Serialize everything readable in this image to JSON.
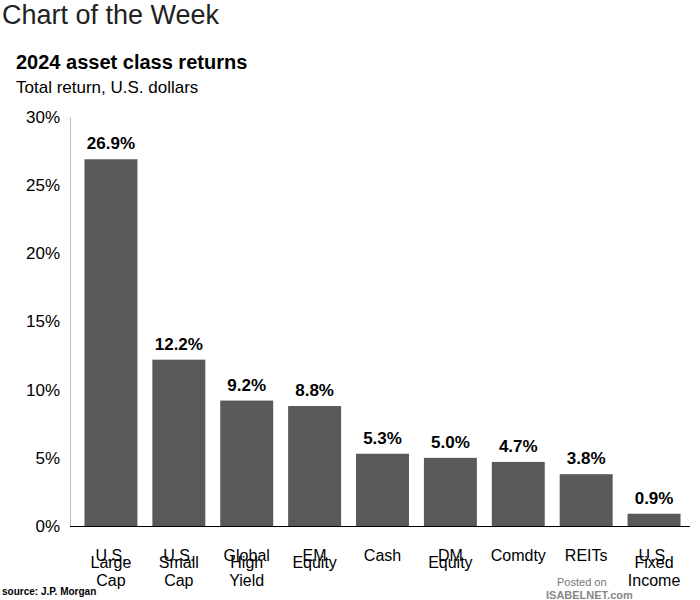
{
  "chart_data": {
    "type": "bar",
    "supertitle": "Chart of the Week",
    "title": "2024 asset class returns",
    "subtitle": "Total return, U.S. dollars",
    "source": "source: J.P. Morgan",
    "annotations": [
      "Posted on",
      "ISABELNET.com"
    ],
    "categories": [
      "U.S. Large Cap",
      "U.S. Small Cap",
      "Global High Yield",
      "EM Equity",
      "Cash",
      "DM Equity",
      "Comdty",
      "REITs",
      "U.S. Fixed Income"
    ],
    "values": [
      26.9,
      12.2,
      9.2,
      8.8,
      5.3,
      5.0,
      4.7,
      3.8,
      0.9
    ],
    "value_labels": [
      "26.9%",
      "12.2%",
      "9.2%",
      "8.8%",
      "5.3%",
      "5.0%",
      "4.7%",
      "3.8%",
      "0.9%"
    ],
    "data_labels": true,
    "color": "#58595b",
    "ylim": [
      0,
      30
    ],
    "yticks": [
      {
        "value": 0,
        "label": "0%"
      },
      {
        "value": 5,
        "label": "5%"
      },
      {
        "value": 10,
        "label": "10%"
      },
      {
        "value": 15,
        "label": "15%"
      },
      {
        "value": 20,
        "label": "20%"
      },
      {
        "value": 25,
        "label": "25%"
      },
      {
        "value": 30,
        "label": "30%"
      }
    ],
    "grid": false
  }
}
